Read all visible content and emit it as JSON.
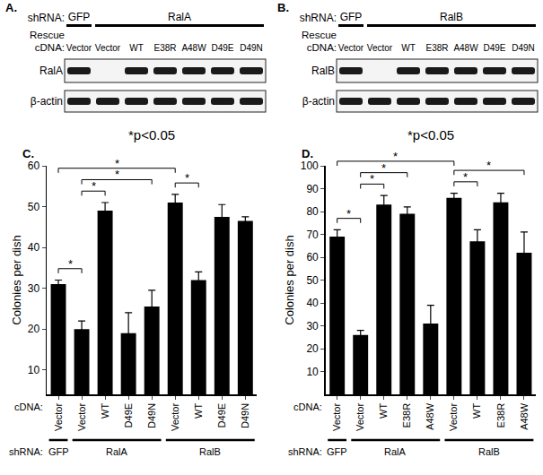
{
  "blots": [
    {
      "panel": "A.",
      "shrna_label": "shRNA:",
      "shrna_groups": [
        {
          "label": "GFP",
          "lanes": [
            0,
            0
          ]
        },
        {
          "label": "RalA",
          "lanes": [
            1,
            6
          ]
        }
      ],
      "cdna_label": [
        "Rescue",
        "cDNA:"
      ],
      "lanes": [
        "Vector",
        "Vector",
        "WT",
        "E38R",
        "A48W",
        "D49E",
        "D49N"
      ],
      "rows": [
        {
          "label": "RalA",
          "bands": [
            true,
            false,
            true,
            true,
            true,
            true,
            true
          ]
        },
        {
          "label": "β-actin",
          "bands": [
            true,
            true,
            true,
            true,
            true,
            true,
            true
          ]
        }
      ]
    },
    {
      "panel": "B.",
      "shrna_label": "shRNA:",
      "shrna_groups": [
        {
          "label": "GFP",
          "lanes": [
            0,
            0
          ]
        },
        {
          "label": "RalB",
          "lanes": [
            1,
            6
          ]
        }
      ],
      "cdna_label": [
        "Rescue",
        "cDNA:"
      ],
      "lanes": [
        "Vector",
        "Vector",
        "WT",
        "E38R",
        "A48W",
        "D49E",
        "D49N"
      ],
      "rows": [
        {
          "label": "RalB",
          "bands": [
            true,
            false,
            true,
            true,
            true,
            true,
            true
          ]
        },
        {
          "label": "β-actin",
          "bands": [
            true,
            true,
            true,
            true,
            true,
            true,
            true
          ]
        }
      ]
    }
  ],
  "chart_data": [
    {
      "panel": "C.",
      "type": "bar",
      "title": "*p<0.05",
      "y_label": "Colonies per dish",
      "categories": [
        "Vector",
        "Vector",
        "WT",
        "D49E",
        "D49N",
        "Vector",
        "WT",
        "D49E",
        "D49N"
      ],
      "values": [
        31,
        20,
        49,
        19,
        25.5,
        51,
        32,
        47.5,
        46.5
      ],
      "errors": [
        1,
        2,
        2,
        5,
        4,
        2,
        2,
        3,
        1
      ],
      "color": "#000000",
      "ylim": [
        4,
        60
      ],
      "yticks": [
        10,
        20,
        30,
        40,
        50,
        60
      ],
      "grid": false,
      "cdna_label": "cDNA:",
      "shrna_label": "shRNA:",
      "shrna_groups": [
        {
          "label": "GFP",
          "bars": [
            0,
            0
          ]
        },
        {
          "label": "RalA",
          "bars": [
            1,
            4
          ]
        },
        {
          "label": "RalB",
          "bars": [
            5,
            8
          ]
        }
      ],
      "significance": {
        "label": "*",
        "pairs": [
          [
            0,
            5
          ],
          [
            0,
            1
          ],
          [
            1,
            2
          ],
          [
            1,
            4
          ],
          [
            5,
            6
          ]
        ]
      }
    },
    {
      "panel": "D.",
      "type": "bar",
      "title": "*p<0.05",
      "y_label": "Colonies per dish",
      "categories": [
        "Vector",
        "Vector",
        "WT",
        "E38R",
        "A48W",
        "Vector",
        "WT",
        "E38R",
        "A48W"
      ],
      "values": [
        69,
        26,
        83,
        79,
        31,
        86,
        67,
        84,
        62
      ],
      "errors": [
        3,
        2,
        4,
        3,
        8,
        2,
        5,
        4,
        9
      ],
      "color": "#000000",
      "ylim": [
        0,
        100
      ],
      "yticks": [
        10,
        20,
        30,
        40,
        50,
        60,
        70,
        80,
        90,
        100
      ],
      "grid": false,
      "cdna_label": "cDNA:",
      "shrna_label": "shRNA:",
      "shrna_groups": [
        {
          "label": "GFP",
          "bars": [
            0,
            0
          ]
        },
        {
          "label": "RalA",
          "bars": [
            1,
            4
          ]
        },
        {
          "label": "RalB",
          "bars": [
            5,
            8
          ]
        }
      ],
      "significance": {
        "label": "*",
        "pairs": [
          [
            0,
            5
          ],
          [
            0,
            1
          ],
          [
            1,
            2
          ],
          [
            1,
            3
          ],
          [
            5,
            6
          ],
          [
            5,
            8
          ]
        ]
      }
    }
  ]
}
